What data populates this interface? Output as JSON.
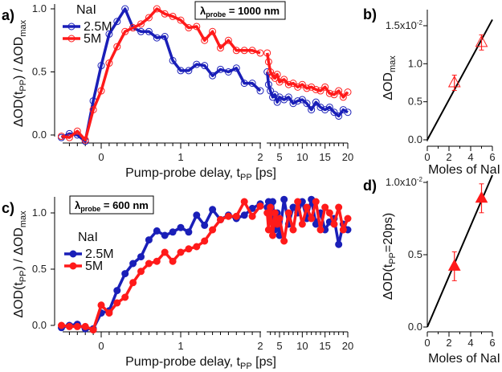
{
  "chart_data": [
    {
      "panel": "a)",
      "type": "line",
      "title": "",
      "box_label": {
        "lambda": "λ",
        "sub": "probe",
        "rest": " = 1000 nm"
      },
      "xlabel": {
        "main": "Pump-probe delay, t",
        "sub": "PP",
        "rest": " [ps]"
      },
      "ylabel": "ΔOD(tPP) / ΔODmax",
      "xticks_short": [
        "0",
        "1",
        "2"
      ],
      "xticks_long": [
        "5",
        "10",
        "15",
        "20"
      ],
      "yticks": [
        "0.0",
        "0.5",
        "1.0"
      ],
      "legend": {
        "title": "NaI",
        "marker": "open-circle"
      },
      "series": [
        {
          "name": "2.5M",
          "color": "#1a1fb8",
          "x": [
            -0.5,
            -0.4,
            -0.3,
            -0.2,
            -0.1,
            0,
            0.1,
            0.2,
            0.3,
            0.4,
            0.5,
            0.6,
            0.7,
            0.8,
            0.9,
            1.0,
            1.1,
            1.2,
            1.3,
            1.4,
            1.5,
            1.6,
            1.7,
            1.8,
            1.9,
            2.0
          ],
          "y": [
            -0.02,
            0.01,
            0.0,
            -0.05,
            0.27,
            0.55,
            0.8,
            0.9,
            1.0,
            0.85,
            0.82,
            0.82,
            0.77,
            0.78,
            0.59,
            0.51,
            0.51,
            0.56,
            0.55,
            0.47,
            0.52,
            0.5,
            0.53,
            0.41,
            0.41,
            0.35
          ],
          "x_long": [
            2.3,
            2.6,
            3,
            3.5,
            4,
            4.5,
            5,
            6,
            7,
            8,
            9,
            10,
            11,
            12,
            13,
            14,
            15,
            16,
            17,
            18,
            19,
            20
          ],
          "y_long": [
            0.5,
            0.4,
            0.35,
            0.3,
            0.32,
            0.26,
            0.3,
            0.28,
            0.3,
            0.25,
            0.27,
            0.28,
            0.25,
            0.2,
            0.26,
            0.22,
            0.2,
            0.22,
            0.18,
            0.15,
            0.2,
            0.18
          ]
        },
        {
          "name": "5M",
          "color": "#ff1a1a",
          "x": [
            -0.5,
            -0.4,
            -0.3,
            -0.2,
            -0.1,
            0,
            0.1,
            0.2,
            0.3,
            0.4,
            0.5,
            0.6,
            0.7,
            0.8,
            0.9,
            1.0,
            1.1,
            1.2,
            1.3,
            1.4,
            1.5,
            1.6,
            1.7,
            1.8,
            1.9,
            2.0
          ],
          "y": [
            -0.01,
            -0.02,
            0.03,
            -0.04,
            0.2,
            0.35,
            0.57,
            0.7,
            0.82,
            0.85,
            0.88,
            0.93,
            1.0,
            0.96,
            0.94,
            0.91,
            0.85,
            0.86,
            0.75,
            0.82,
            0.69,
            0.75,
            0.67,
            0.67,
            0.67,
            0.65
          ],
          "x_long": [
            2.3,
            2.6,
            3,
            3.5,
            4,
            4.5,
            5,
            6,
            7,
            8,
            9,
            10,
            11,
            12,
            13,
            14,
            15,
            16,
            17,
            18,
            19,
            20
          ],
          "y_long": [
            0.65,
            0.58,
            0.5,
            0.47,
            0.45,
            0.48,
            0.42,
            0.44,
            0.4,
            0.41,
            0.38,
            0.4,
            0.37,
            0.38,
            0.36,
            0.35,
            0.38,
            0.33,
            0.32,
            0.35,
            0.3,
            0.34
          ]
        }
      ]
    },
    {
      "panel": "b)",
      "type": "scatter",
      "ylabel": {
        "main": "ΔOD",
        "sub": "max"
      },
      "xlabel": "Moles of NaI",
      "xticks": [
        "0",
        "2",
        "4",
        "6"
      ],
      "yticks": [
        "0.0",
        "0.5",
        "1.0",
        "1.5x10"
      ],
      "y_exp": "-2",
      "points": {
        "x": [
          2.5,
          5
        ],
        "y": [
          0.0075,
          0.0128
        ],
        "err": [
          0.001,
          0.001
        ],
        "marker": "open-triangle",
        "color": "#ff1a1a"
      },
      "fit": {
        "x": [
          0,
          6
        ],
        "y": [
          0,
          0.0158
        ]
      }
    },
    {
      "panel": "c)",
      "type": "line",
      "box_label": {
        "lambda": "λ",
        "sub": "probe",
        "rest": " = 600 nm"
      },
      "xlabel": {
        "main": "Pump-probe delay, t",
        "sub": "PP",
        "rest": " [ps]"
      },
      "ylabel": "ΔOD(tPP) / ΔODmax",
      "xticks_short": [
        "0",
        "1",
        "2"
      ],
      "xticks_long": [
        "5",
        "10",
        "15",
        "20"
      ],
      "yticks": [
        "0.0",
        "0.5",
        "1.0"
      ],
      "legend": {
        "title": "NaI",
        "marker": "filled-circle"
      },
      "series": [
        {
          "name": "2.5M",
          "color": "#1a1fb8",
          "x": [
            -0.5,
            -0.4,
            -0.3,
            -0.2,
            -0.1,
            0,
            0.1,
            0.2,
            0.3,
            0.4,
            0.5,
            0.6,
            0.7,
            0.8,
            0.9,
            1.0,
            1.1,
            1.2,
            1.3,
            1.4,
            1.5,
            1.6,
            1.7,
            1.8,
            1.9,
            2.0
          ],
          "y": [
            -0.02,
            0.0,
            0.01,
            -0.03,
            -0.03,
            0.11,
            0.13,
            0.31,
            0.46,
            0.55,
            0.61,
            0.76,
            0.84,
            0.8,
            0.83,
            0.87,
            0.83,
            0.98,
            0.89,
            1.03,
            0.94,
            0.98,
            0.95,
            0.98,
            1.04,
            1.08
          ],
          "x_long": [
            2.3,
            2.6,
            3,
            3.5,
            4,
            4.5,
            5,
            6,
            7,
            8,
            9,
            10,
            11,
            12,
            13,
            14,
            15,
            16,
            17,
            18,
            19,
            20
          ],
          "y_long": [
            1.05,
            1.1,
            0.95,
            1.1,
            0.85,
            1.0,
            0.8,
            1.12,
            0.9,
            1.05,
            1.0,
            1.1,
            0.95,
            1.12,
            0.9,
            1.0,
            0.85,
            0.92,
            0.95,
            0.72,
            0.9,
            0.85
          ]
        },
        {
          "name": "5M",
          "color": "#ff1a1a",
          "x": [
            -0.5,
            -0.4,
            -0.3,
            -0.2,
            -0.1,
            0,
            0.1,
            0.2,
            0.3,
            0.4,
            0.5,
            0.6,
            0.7,
            0.8,
            0.9,
            1.0,
            1.1,
            1.2,
            1.3,
            1.4,
            1.5,
            1.6,
            1.7,
            1.8,
            1.9,
            2.0
          ],
          "y": [
            0.0,
            -0.01,
            -0.01,
            -0.01,
            -0.04,
            0.18,
            0.11,
            0.2,
            0.25,
            0.38,
            0.48,
            0.55,
            0.57,
            0.65,
            0.57,
            0.65,
            0.68,
            0.7,
            0.75,
            0.85,
            0.94,
            0.97,
            0.97,
            1.1,
            0.97,
            1.06
          ],
          "x_long": [
            2.3,
            2.6,
            3,
            3.5,
            4,
            4.5,
            5,
            6,
            7,
            8,
            9,
            10,
            11,
            12,
            13,
            14,
            15,
            16,
            17,
            18,
            19,
            20
          ],
          "y_long": [
            1.0,
            0.85,
            1.05,
            0.8,
            1.0,
            0.9,
            0.95,
            0.75,
            1.0,
            0.85,
            1.1,
            0.9,
            1.05,
            0.95,
            1.1,
            0.85,
            1.05,
            1.0,
            0.9,
            1.05,
            0.85,
            0.95
          ]
        }
      ]
    },
    {
      "panel": "d)",
      "type": "scatter",
      "ylabel": {
        "main": "ΔOD(t",
        "sub": "PP",
        "rest": "=20ps)"
      },
      "xlabel": "Moles of NaI",
      "xticks": [
        "0",
        "2",
        "4",
        "6"
      ],
      "yticks": [
        "0.0",
        "0.5",
        "1.0x10"
      ],
      "y_exp": "-2",
      "points": {
        "x": [
          2.5,
          5
        ],
        "y": [
          0.0042,
          0.0089
        ],
        "err": [
          0.001,
          0.001
        ],
        "marker": "filled-triangle",
        "color": "#ff1a1a"
      },
      "fit": {
        "x": [
          0,
          6
        ],
        "y": [
          0,
          0.0105
        ]
      }
    }
  ]
}
